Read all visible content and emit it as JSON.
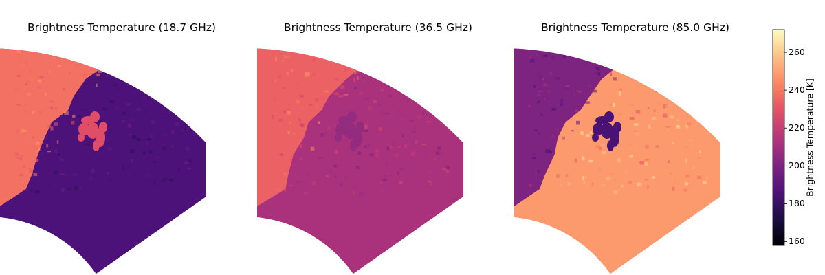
{
  "chart_data": {
    "type": "heatmap",
    "colormap": "magma",
    "colorbar": {
      "label": "Brightness Temperature [K]",
      "range": [
        158,
        272
      ],
      "ticks": [
        160,
        180,
        200,
        220,
        240,
        260
      ]
    },
    "panels": [
      {
        "title": "Brightness Temperature (18.7 GHz)",
        "land_tb": 238,
        "ocean_tb": 186,
        "island_tb": 228,
        "texture": 5
      },
      {
        "title": "Brightness Temperature (36.5 GHz)",
        "land_tb": 234,
        "ocean_tb": 212,
        "island_tb": 206,
        "texture": 7
      },
      {
        "title": "Brightness Temperature (85.0 GHz)",
        "land_tb": 200,
        "ocean_tb": 248,
        "island_tb": 185,
        "texture": 9
      }
    ]
  }
}
